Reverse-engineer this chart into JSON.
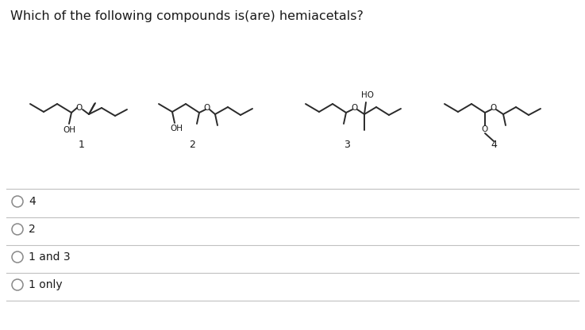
{
  "title": "Which of the following compounds is(are) hemiacetals?",
  "title_fontsize": 11.5,
  "background_color": "#ffffff",
  "text_color": "#1a1a1a",
  "line_color": "#2a2a2a",
  "divider_color": "#c0c0c0",
  "options": [
    "4",
    "2",
    "1 and 3",
    "1 only"
  ],
  "compound_labels": [
    "1",
    "2",
    "3",
    "4"
  ]
}
